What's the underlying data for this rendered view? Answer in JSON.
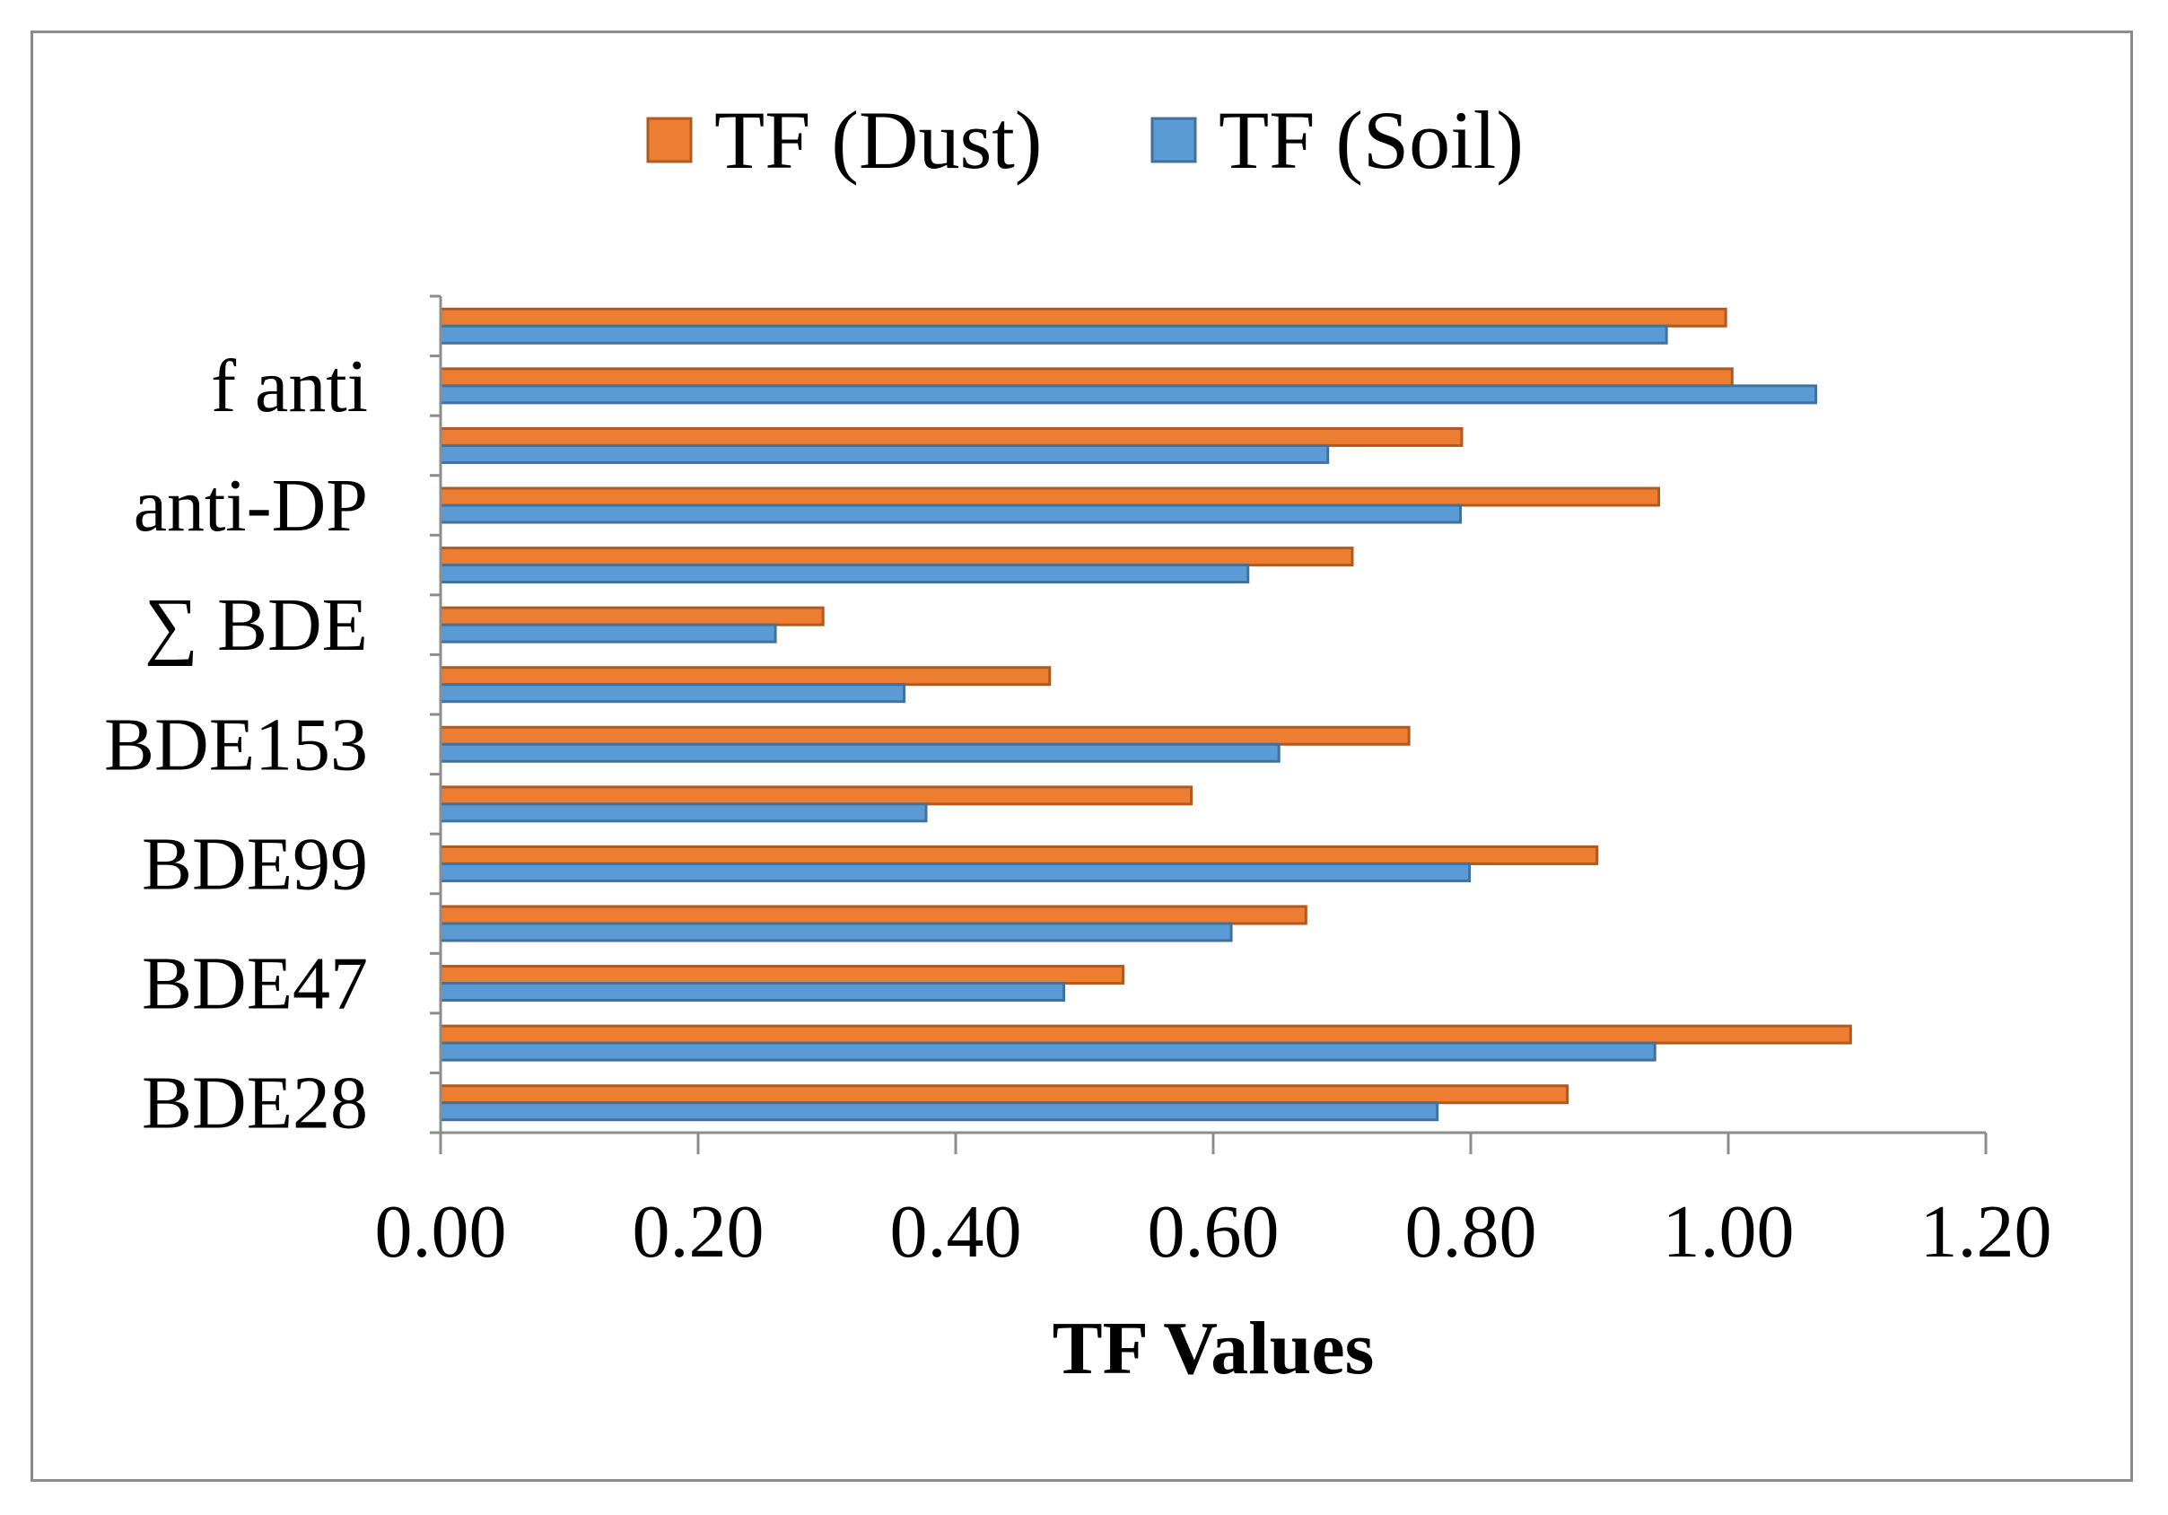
{
  "chart_data": {
    "type": "bar",
    "orientation": "horizontal",
    "xlabel": "TF Values",
    "ylabel": "",
    "xlim": [
      0,
      1.2
    ],
    "xticks": [
      "0.00",
      "0.20",
      "0.40",
      "0.60",
      "0.80",
      "1.00",
      "1.20"
    ],
    "grid": false,
    "legend_position": "top",
    "categories_bottom_to_top": [
      "BDE28",
      "",
      "BDE47",
      "",
      "BDE99",
      "",
      "BDE153",
      "",
      "∑ BDE",
      "",
      "anti-DP",
      "",
      "f anti",
      ""
    ],
    "series": [
      {
        "name": "TF (Dust)",
        "color": "#ED7D31",
        "stroke": "#AE5A21",
        "values": [
          0.875,
          1.095,
          0.53,
          0.672,
          0.898,
          0.583,
          0.752,
          0.473,
          0.297,
          0.708,
          0.946,
          0.793,
          1.003,
          0.998
        ]
      },
      {
        "name": "TF (Soil)",
        "color": "#5B9BD5",
        "stroke": "#41719C",
        "values": [
          0.774,
          0.943,
          0.484,
          0.614,
          0.799,
          0.377,
          0.651,
          0.36,
          0.26,
          0.627,
          0.792,
          0.689,
          1.068,
          0.952
        ]
      }
    ]
  }
}
